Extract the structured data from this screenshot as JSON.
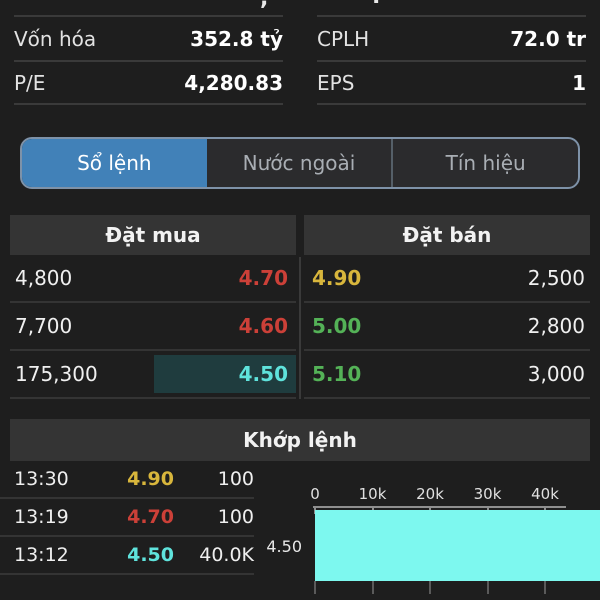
{
  "colors": {
    "background": "#1e1e1e",
    "panel_header_bg": "#343434",
    "divider": "#3a3a3a",
    "tab_active_bg": "#4181b8",
    "tab_border": "#7e92a8",
    "price_red": "#cc4038",
    "price_yellow": "#d8b63c",
    "price_green": "#54b257",
    "price_cyan": "#5fe3dc",
    "highlight_bg": "#1f3c3e",
    "chart_bar": "#7df8ef"
  },
  "top_partial_row": {
    "left_fragment": ",",
    "right_fragment": "."
  },
  "stats": {
    "left": [
      {
        "label": "Vốn hóa",
        "value": "352.8 tỷ"
      },
      {
        "label": "P/E",
        "value": "4,280.83"
      }
    ],
    "right": [
      {
        "label": "CPLH",
        "value": "72.0 tr"
      },
      {
        "label": "EPS",
        "value": "1"
      }
    ]
  },
  "tabs": [
    {
      "label": "Sổ lệnh",
      "state": "active"
    },
    {
      "label": "Nước ngoài",
      "state": ""
    },
    {
      "label": "Tín hiệu",
      "state": ""
    }
  ],
  "order_book": {
    "buy_header": "Đặt mua",
    "sell_header": "Đặt bán",
    "rows": [
      {
        "buy_volume": "4,800",
        "buy_price": "4.70",
        "buy_price_class": "red",
        "sell_price": "4.90",
        "sell_price_class": "yellow",
        "sell_volume": "2,500"
      },
      {
        "buy_volume": "7,700",
        "buy_price": "4.60",
        "buy_price_class": "red",
        "sell_price": "5.00",
        "sell_price_class": "green",
        "sell_volume": "2,800"
      },
      {
        "buy_volume": "175,300",
        "buy_price": "4.50",
        "buy_price_class": "cyan highlight",
        "sell_price": "5.10",
        "sell_price_class": "green",
        "sell_volume": "3,000"
      }
    ]
  },
  "matched": {
    "header": "Khớp lệnh",
    "rows": [
      {
        "time": "13:30",
        "price": "4.90",
        "price_class": "yellow",
        "volume": "100"
      },
      {
        "time": "13:19",
        "price": "4.70",
        "price_class": "red",
        "volume": "100"
      },
      {
        "time": "13:12",
        "price": "4.50",
        "price_class": "cyan",
        "volume": "40.0K"
      }
    ]
  },
  "chart_data": {
    "type": "bar",
    "orientation": "horizontal",
    "categories": [
      "4.50"
    ],
    "values": [
      40000
    ],
    "x_ticks": [
      {
        "label": "0",
        "value": 0
      },
      {
        "label": "10k",
        "value": 10000
      },
      {
        "label": "20k",
        "value": 20000
      },
      {
        "label": "30k",
        "value": 30000
      },
      {
        "label": "40k",
        "value": 40000
      }
    ],
    "xlim": [
      0,
      40000
    ],
    "grid": false,
    "legend": false,
    "bar_color": "#7df8ef",
    "axis_position": "top"
  }
}
